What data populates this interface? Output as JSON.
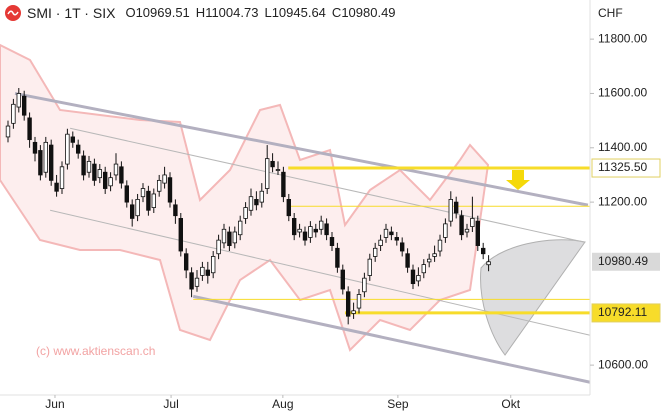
{
  "chart_data": {
    "type": "candlestick",
    "title": "SMI · 1T · SIX",
    "header_labels": [
      "O",
      "H",
      "L",
      "C"
    ],
    "currency": "CHF",
    "watermark": "(c) www.aktienscan.ch",
    "up_color": "#ffffff",
    "down_color": "#111111",
    "outline_color": "#111111",
    "last_price_color": "#d9d9d9",
    "x": [
      0,
      1,
      2,
      3,
      4,
      5,
      6,
      7,
      8,
      9,
      10,
      11,
      12,
      13,
      14,
      15,
      16,
      17,
      18,
      19,
      20,
      21,
      22,
      23,
      24,
      25,
      26,
      27,
      28,
      29,
      30,
      31,
      32,
      33,
      34,
      35,
      36,
      37,
      38,
      39,
      40,
      41,
      42,
      43,
      44,
      45,
      46,
      47,
      48,
      49,
      50,
      51,
      52,
      53,
      54,
      55,
      56,
      57,
      58,
      59,
      60,
      61,
      62,
      63,
      64,
      65,
      66,
      67,
      68,
      69,
      70,
      71,
      72,
      73,
      74,
      75,
      76,
      77,
      78,
      79,
      80,
      81,
      82,
      83,
      84,
      85,
      86,
      87,
      88,
      89
    ],
    "open": [
      11440,
      11490,
      11550,
      11590,
      11510,
      11420,
      11390,
      11310,
      11410,
      11270,
      11250,
      11340,
      11440,
      11410,
      11370,
      11310,
      11340,
      11290,
      11310,
      11260,
      11300,
      11330,
      11260,
      11190,
      11150,
      11220,
      11240,
      11180,
      11240,
      11270,
      11290,
      11190,
      11140,
      11010,
      10940,
      10890,
      10930,
      10950,
      10940,
      11010,
      11050,
      11090,
      11050,
      11080,
      11140,
      11170,
      11210,
      11200,
      11250,
      11350,
      11320,
      11310,
      11210,
      11140,
      11090,
      11090,
      11070,
      11100,
      11100,
      11120,
      11070,
      11030,
      10950,
      10870,
      10790,
      10810,
      10870,
      10930,
      11000,
      11040,
      11070,
      11090,
      11070,
      11050,
      11010,
      10950,
      10910,
      10940,
      10980,
      11000,
      11020,
      11070,
      11130,
      11200,
      11150,
      11090,
      11110,
      11130,
      11030,
      10969.51
    ],
    "high": [
      11500,
      11580,
      11620,
      11610,
      11530,
      11440,
      11410,
      11440,
      11430,
      11300,
      11350,
      11470,
      11460,
      11430,
      11390,
      11370,
      11360,
      11340,
      11330,
      11310,
      11380,
      11350,
      11280,
      11210,
      11230,
      11270,
      11260,
      11250,
      11300,
      11330,
      11310,
      11210,
      11160,
      11030,
      10960,
      10950,
      10980,
      10980,
      11020,
      11080,
      11120,
      11110,
      11110,
      11150,
      11200,
      11250,
      11240,
      11270,
      11410,
      11380,
      11350,
      11330,
      11230,
      11160,
      11120,
      11110,
      11130,
      11120,
      11150,
      11140,
      11090,
      11050,
      10970,
      10890,
      10830,
      10880,
      10940,
      11010,
      11050,
      11080,
      11120,
      11110,
      11090,
      11070,
      11030,
      10970,
      10960,
      10990,
      11010,
      11040,
      11080,
      11140,
      11240,
      11220,
      11170,
      11120,
      11220,
      11150,
      11050,
      11004.73
    ],
    "low": [
      11420,
      11470,
      11530,
      11500,
      11400,
      11350,
      11280,
      11290,
      11260,
      11220,
      11230,
      11320,
      11400,
      11360,
      11280,
      11290,
      11260,
      11270,
      11230,
      11240,
      11280,
      11250,
      11180,
      11110,
      11130,
      11200,
      11150,
      11160,
      11220,
      11250,
      11180,
      11120,
      11000,
      10920,
      10850,
      10870,
      10910,
      10900,
      10920,
      10990,
      11030,
      11020,
      11030,
      11060,
      11120,
      11150,
      11170,
      11180,
      11230,
      11310,
      11300,
      11200,
      11130,
      11060,
      11070,
      11040,
      11050,
      11070,
      11080,
      11060,
      11020,
      10940,
      10860,
      10750,
      10770,
      10790,
      10850,
      10910,
      10980,
      11020,
      11050,
      11060,
      11040,
      11000,
      10940,
      10880,
      10890,
      10920,
      10960,
      10980,
      11000,
      11050,
      11110,
      11140,
      11060,
      11070,
      11090,
      11020,
      10990,
      10945.64
    ],
    "close": [
      11480,
      11560,
      11600,
      11520,
      11430,
      11380,
      11300,
      11420,
      11280,
      11240,
      11330,
      11450,
      11420,
      11380,
      11300,
      11350,
      11280,
      11320,
      11250,
      11290,
      11340,
      11270,
      11200,
      11140,
      11210,
      11250,
      11170,
      11230,
      11280,
      11300,
      11200,
      11150,
      11020,
      10950,
      10880,
      10920,
      10960,
      10930,
      11000,
      11060,
      11100,
      11040,
      11090,
      11130,
      11180,
      11220,
      11190,
      11240,
      11360,
      11330,
      11320,
      11220,
      11150,
      11080,
      11100,
      11060,
      11110,
      11090,
      11130,
      11080,
      11040,
      10960,
      10880,
      10780,
      10800,
      10860,
      10920,
      10990,
      11030,
      11060,
      11100,
      11080,
      11060,
      11020,
      10960,
      10900,
      10930,
      10970,
      10990,
      11010,
      11060,
      11120,
      11210,
      11160,
      11080,
      11100,
      11140,
      11040,
      11010,
      10980.49
    ],
    "xlim": [
      -1.48,
      107.78
    ],
    "xticks": [
      {
        "value": 8.7,
        "label": "Jun"
      },
      {
        "value": 30.2,
        "label": "Jul"
      },
      {
        "value": 50.9,
        "label": "Aug"
      },
      {
        "value": 72.2,
        "label": "Sep"
      },
      {
        "value": 93.1,
        "label": "Okt"
      }
    ],
    "ylim": [
      10490,
      11944
    ],
    "yticks": [
      {
        "value": 11800,
        "label": "11800.00"
      },
      {
        "value": 11600,
        "label": "11600.00"
      },
      {
        "value": 11400,
        "label": "11400.00"
      },
      {
        "value": 11200,
        "label": "11200.00"
      },
      {
        "value": 10600,
        "label": "10600.00"
      }
    ],
    "channels": [
      {
        "x": [
          1.3,
          107.4
        ],
        "y": [
          11600,
          11189
        ],
        "color": "#b3b0c0",
        "width": 3
      },
      {
        "x": [
          34.3,
          107.8
        ],
        "y": [
          10853,
          10537
        ],
        "color": "#b3b0c0",
        "width": 3
      },
      {
        "x": [
          11.5,
          106.9
        ],
        "y": [
          11472,
          11052
        ],
        "color": "#b8b8b8",
        "width": 1
      },
      {
        "x": [
          7.8,
          107.8
        ],
        "y": [
          11170,
          10710
        ],
        "color": "#b8b8b8",
        "width": 1
      }
    ],
    "levels": [
      {
        "value": 11325.5,
        "label": "11325.50",
        "x": [
          51.9,
          107.78
        ],
        "color": "#f7dc2a",
        "width": 3,
        "label_bg": "#ffffff"
      },
      {
        "value": 11185,
        "x": [
          51.9,
          107.78
        ],
        "color": "#f7dc2a",
        "width": 1
      },
      {
        "value": 10842,
        "x": [
          34.3,
          107.78
        ],
        "color": "#f7dc2a",
        "width": 1
      },
      {
        "value": 10792.11,
        "x": [
          62.4,
          107.78
        ],
        "color": "#f7dc2a",
        "width": 3,
        "label_bg": "#f7dc2a"
      }
    ]
  }
}
